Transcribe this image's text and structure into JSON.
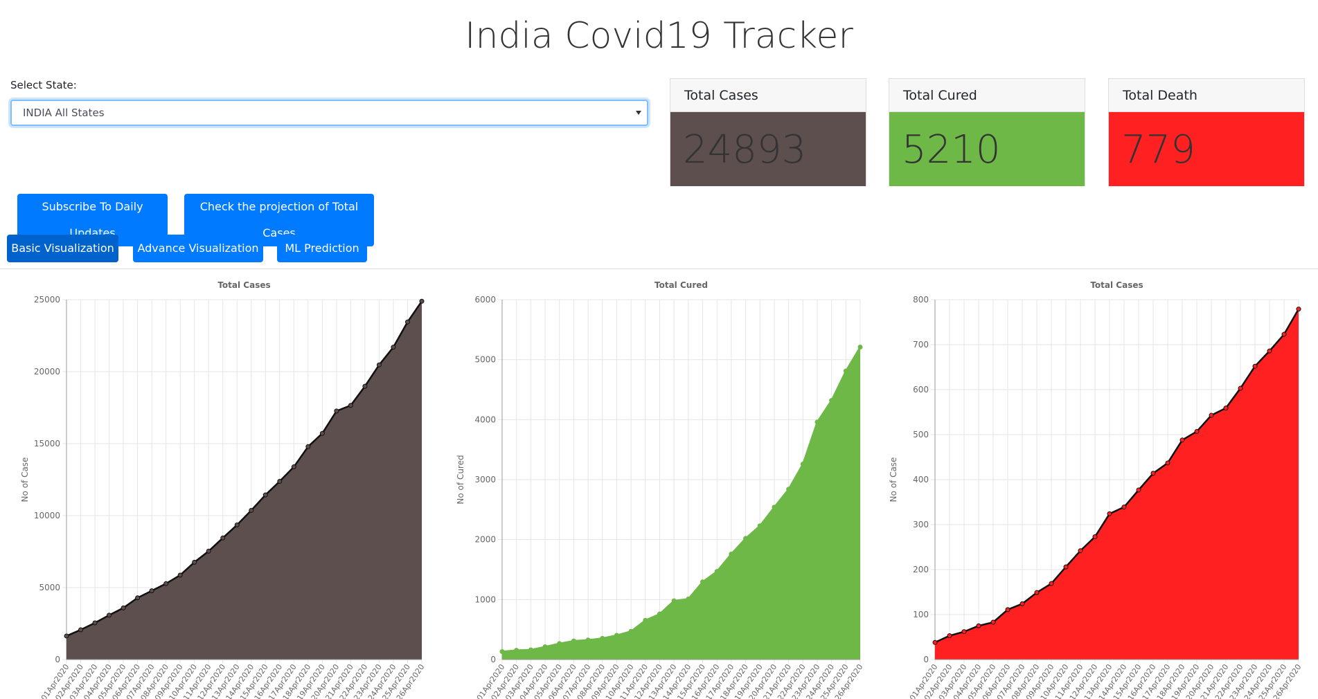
{
  "header": {
    "title": "India Covid19 Tracker"
  },
  "selector": {
    "label": "Select State:",
    "value": "INDIA All States"
  },
  "cards": [
    {
      "title": "Total Cases",
      "value": 24893,
      "color": "#5d4f4e"
    },
    {
      "title": "Total Cured",
      "value": 5210,
      "color": "#6db847"
    },
    {
      "title": "Total Death",
      "value": 779,
      "color": "#ff2121"
    }
  ],
  "buttons": [
    "Subscribe To Daily Updates",
    "Check the projection of Total Cases"
  ],
  "tabs": [
    "Basic Visualization",
    "Advance Visualization",
    "ML Prediction"
  ],
  "chart_data": [
    {
      "type": "area",
      "title": "Total Cases",
      "y_label": "No of Case",
      "color": "#5d4f4e",
      "line_color": "#111111",
      "categories": [
        "01Apr2020",
        "02Apr2020",
        "03Apr2020",
        "04Apr2020",
        "05Apr2020",
        "06Apr2020",
        "07Apr2020",
        "08Apr2020",
        "09Apr2020",
        "10Apr2020",
        "11Apr2020",
        "12Apr2020",
        "13Apr2020",
        "14Apr2020",
        "15Apr2020",
        "16Apr2020",
        "17Apr2020",
        "18Apr2020",
        "19Apr2020",
        "20Apr2020",
        "21Apr2020",
        "22Apr2020",
        "23Apr2020",
        "24Apr2020",
        "25Apr2020",
        "26Apr2020"
      ],
      "values": [
        1637,
        2069,
        2547,
        3082,
        3588,
        4289,
        4778,
        5274,
        5865,
        6761,
        7529,
        8447,
        9352,
        10363,
        11439,
        12380,
        13387,
        14792,
        15712,
        17265,
        17656,
        18985,
        20471,
        21700,
        23452,
        24893
      ],
      "ylim": [
        0,
        25000
      ],
      "yticks": [
        0,
        5000,
        10000,
        15000,
        20000,
        25000
      ],
      "grid": true
    },
    {
      "type": "area",
      "title": "Total Cured",
      "y_label": "No of Cured",
      "color": "#6db847",
      "line_color": "#6db847",
      "categories": [
        "01Apr2020",
        "02Apr2020",
        "03Apr2020",
        "04Apr2020",
        "05Apr2020",
        "06Apr2020",
        "07Apr2020",
        "08Apr2020",
        "09Apr2020",
        "10Apr2020",
        "11Apr2020",
        "12Apr2020",
        "13Apr2020",
        "14Apr2020",
        "15Apr2020",
        "16Apr2020",
        "17Apr2020",
        "18Apr2020",
        "19Apr2020",
        "20Apr2020",
        "21Apr2020",
        "22Apr2020",
        "23Apr2020",
        "24Apr2020",
        "25Apr2020",
        "26Apr2020"
      ],
      "values": [
        133,
        155,
        162,
        213,
        267,
        310,
        326,
        354,
        404,
        470,
        654,
        760,
        980,
        1010,
        1295,
        1470,
        1760,
        2020,
        2230,
        2540,
        2840,
        3260,
        3960,
        4320,
        4810,
        5210
      ],
      "ylim": [
        0,
        6000
      ],
      "yticks": [
        0,
        1000,
        2000,
        3000,
        4000,
        5000,
        6000
      ],
      "grid": true
    },
    {
      "type": "area",
      "title": "Total Cases",
      "y_label": "No of Case",
      "color": "#ff2121",
      "line_color": "#111111",
      "categories": [
        "01Apr2020",
        "02Apr2020",
        "03Apr2020",
        "04Apr2020",
        "05Apr2020",
        "06Apr2020",
        "07Apr2020",
        "08Apr2020",
        "09Apr2020",
        "10Apr2020",
        "11Apr2020",
        "12Apr2020",
        "13Apr2020",
        "14Apr2020",
        "15Apr2020",
        "16Apr2020",
        "17Apr2020",
        "18Apr2020",
        "19Apr2020",
        "20Apr2020",
        "21Apr2020",
        "22Apr2020",
        "23Apr2020",
        "24Apr2020",
        "25Apr2020",
        "26Apr2020"
      ],
      "values": [
        38,
        53,
        62,
        75,
        83,
        111,
        124,
        149,
        169,
        206,
        242,
        273,
        324,
        339,
        377,
        414,
        437,
        488,
        507,
        543,
        559,
        603,
        652,
        686,
        723,
        779
      ],
      "ylim": [
        0,
        800
      ],
      "yticks": [
        0,
        100,
        200,
        300,
        400,
        500,
        600,
        700,
        800
      ],
      "grid": true
    }
  ]
}
